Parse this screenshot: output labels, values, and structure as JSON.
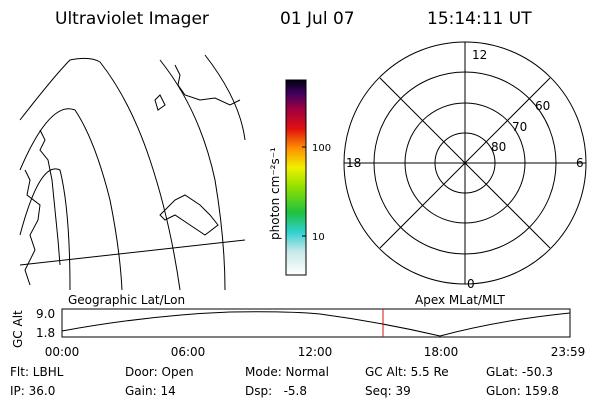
{
  "header": {
    "instrument": "Ultraviolet Imager",
    "date": "01 Jul 07",
    "time": "15:14:11 UT"
  },
  "colorbar": {
    "label": "photon cm⁻²s⁻¹",
    "ticks": [
      "100",
      "10"
    ]
  },
  "polar": {
    "labels": {
      "top": "12",
      "bottom": "0",
      "left": "18",
      "right": "6"
    },
    "rings": [
      "60",
      "70",
      "80"
    ]
  },
  "timeline": {
    "left_title": "Geographic Lat/Lon",
    "right_title": "Apex MLat/MLT",
    "axis_label": "GC Alt",
    "y_labels": [
      "9.0",
      "1.8"
    ],
    "x_labels": [
      "00:00",
      "06:00",
      "12:00",
      "18:00",
      "23:59"
    ]
  },
  "info": {
    "rows": [
      [
        "Flt: LBHL",
        "Door: Open",
        "Mode: Normal",
        "GC Alt: 5.5 Re",
        "GLat: -50.3"
      ],
      [
        "IP: 36.0",
        "Gain: 14",
        "Dsp:   -5.8",
        "Seq: 39",
        "GLon: 159.8"
      ]
    ]
  }
}
